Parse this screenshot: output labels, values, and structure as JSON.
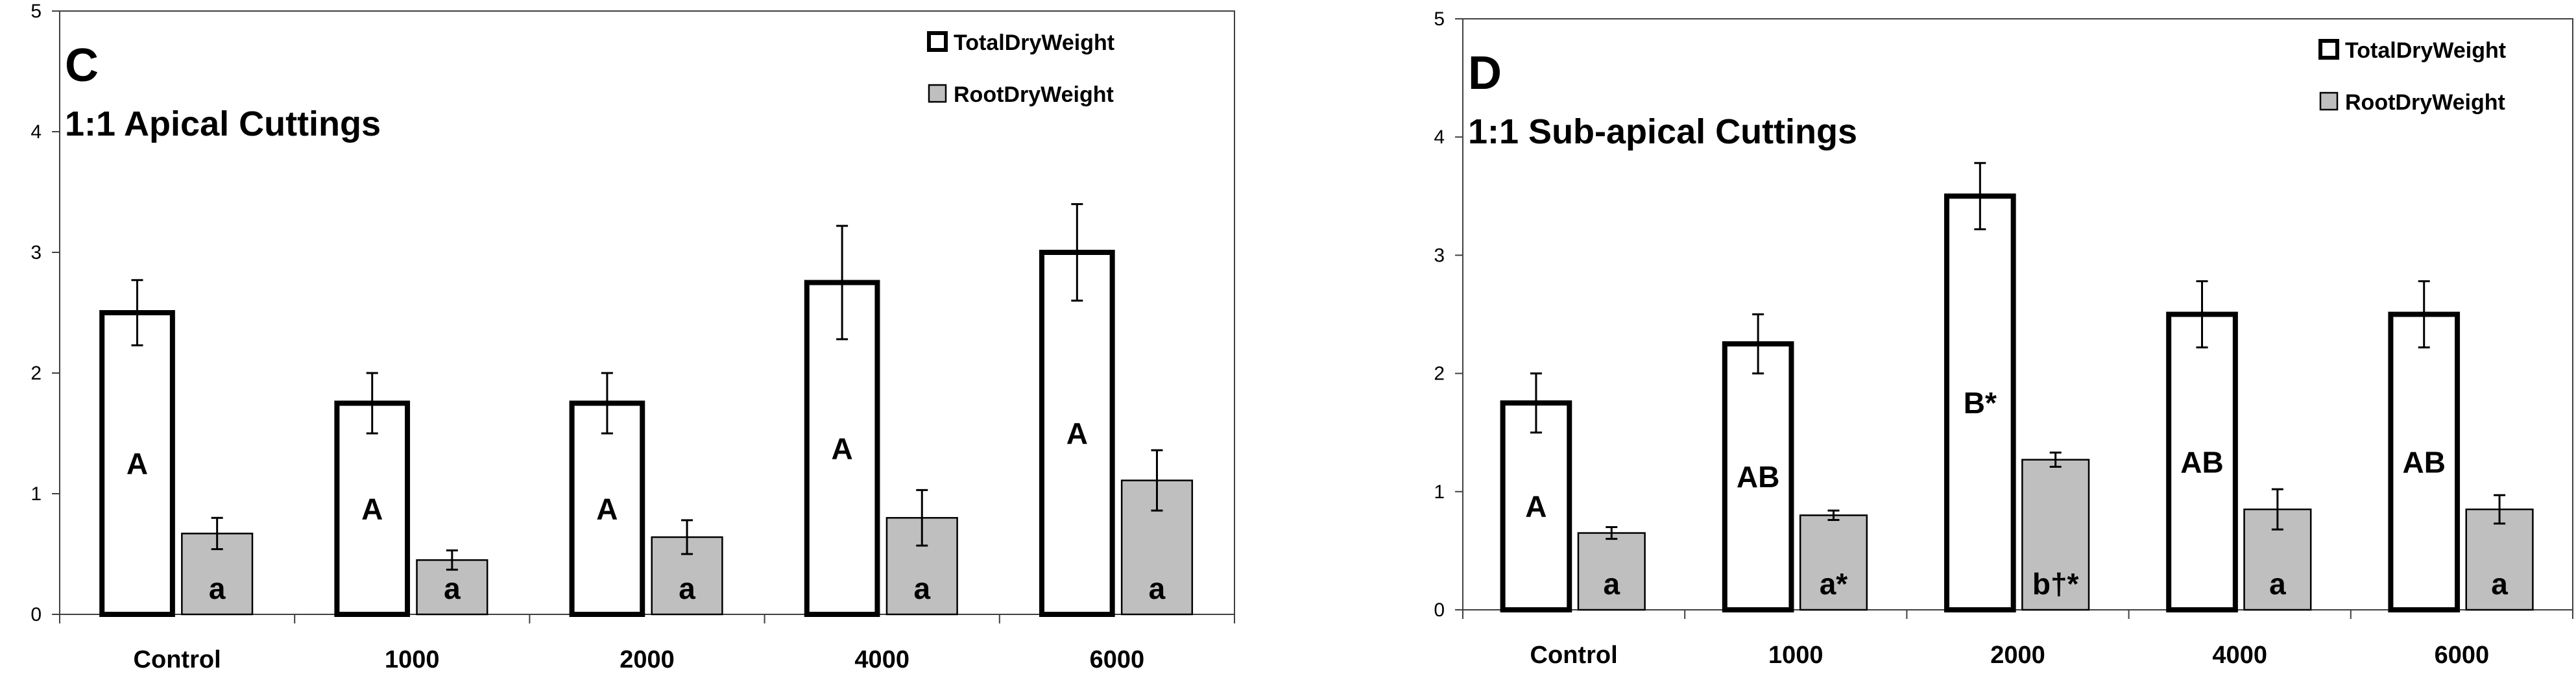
{
  "chart_data": [
    {
      "type": "bar",
      "panel": "C",
      "title": "1:1 Apical Cuttings",
      "categories": [
        "Control",
        "1000",
        "2000",
        "4000",
        "6000"
      ],
      "ylim": [
        0,
        5
      ],
      "yticks": [
        "0",
        "1",
        "2",
        "3",
        "4",
        "5"
      ],
      "xlabel": "",
      "ylabel": "",
      "legend_position": "top-right",
      "series": [
        {
          "name": "TotalDryWeight",
          "fill": "#ffffff",
          "stroke": "#000000",
          "values": [
            2.5,
            1.75,
            1.75,
            2.75,
            3.0
          ],
          "errors": [
            0.27,
            0.25,
            0.25,
            0.47,
            0.4
          ],
          "labels": [
            "A",
            "A",
            "A",
            "A",
            "A"
          ]
        },
        {
          "name": "RootDryWeight",
          "fill": "#bfbfbf",
          "stroke": "#000000",
          "values": [
            0.67,
            0.45,
            0.64,
            0.8,
            1.11
          ],
          "errors": [
            0.13,
            0.08,
            0.14,
            0.23,
            0.25
          ],
          "labels": [
            "a",
            "a",
            "a",
            "a",
            "a"
          ]
        }
      ]
    },
    {
      "type": "bar",
      "panel": "D",
      "title": "1:1 Sub-apical Cuttings",
      "categories": [
        "Control",
        "1000",
        "2000",
        "4000",
        "6000"
      ],
      "ylim": [
        0,
        5
      ],
      "yticks": [
        "0",
        "1",
        "2",
        "3",
        "4",
        "5"
      ],
      "xlabel": "",
      "ylabel": "",
      "legend_position": "top-right",
      "series": [
        {
          "name": "TotalDryWeight",
          "fill": "#ffffff",
          "stroke": "#000000",
          "values": [
            1.75,
            2.25,
            3.5,
            2.5,
            2.5
          ],
          "errors": [
            0.25,
            0.25,
            0.28,
            0.28,
            0.28
          ],
          "labels": [
            "A",
            "AB",
            "B*",
            "AB",
            "AB"
          ]
        },
        {
          "name": "RootDryWeight",
          "fill": "#bfbfbf",
          "stroke": "#000000",
          "values": [
            0.65,
            0.8,
            1.27,
            0.85,
            0.85
          ],
          "errors": [
            0.05,
            0.04,
            0.06,
            0.17,
            0.12
          ],
          "labels": [
            "a",
            "a*",
            "b†*",
            "a",
            "a"
          ]
        }
      ]
    }
  ]
}
